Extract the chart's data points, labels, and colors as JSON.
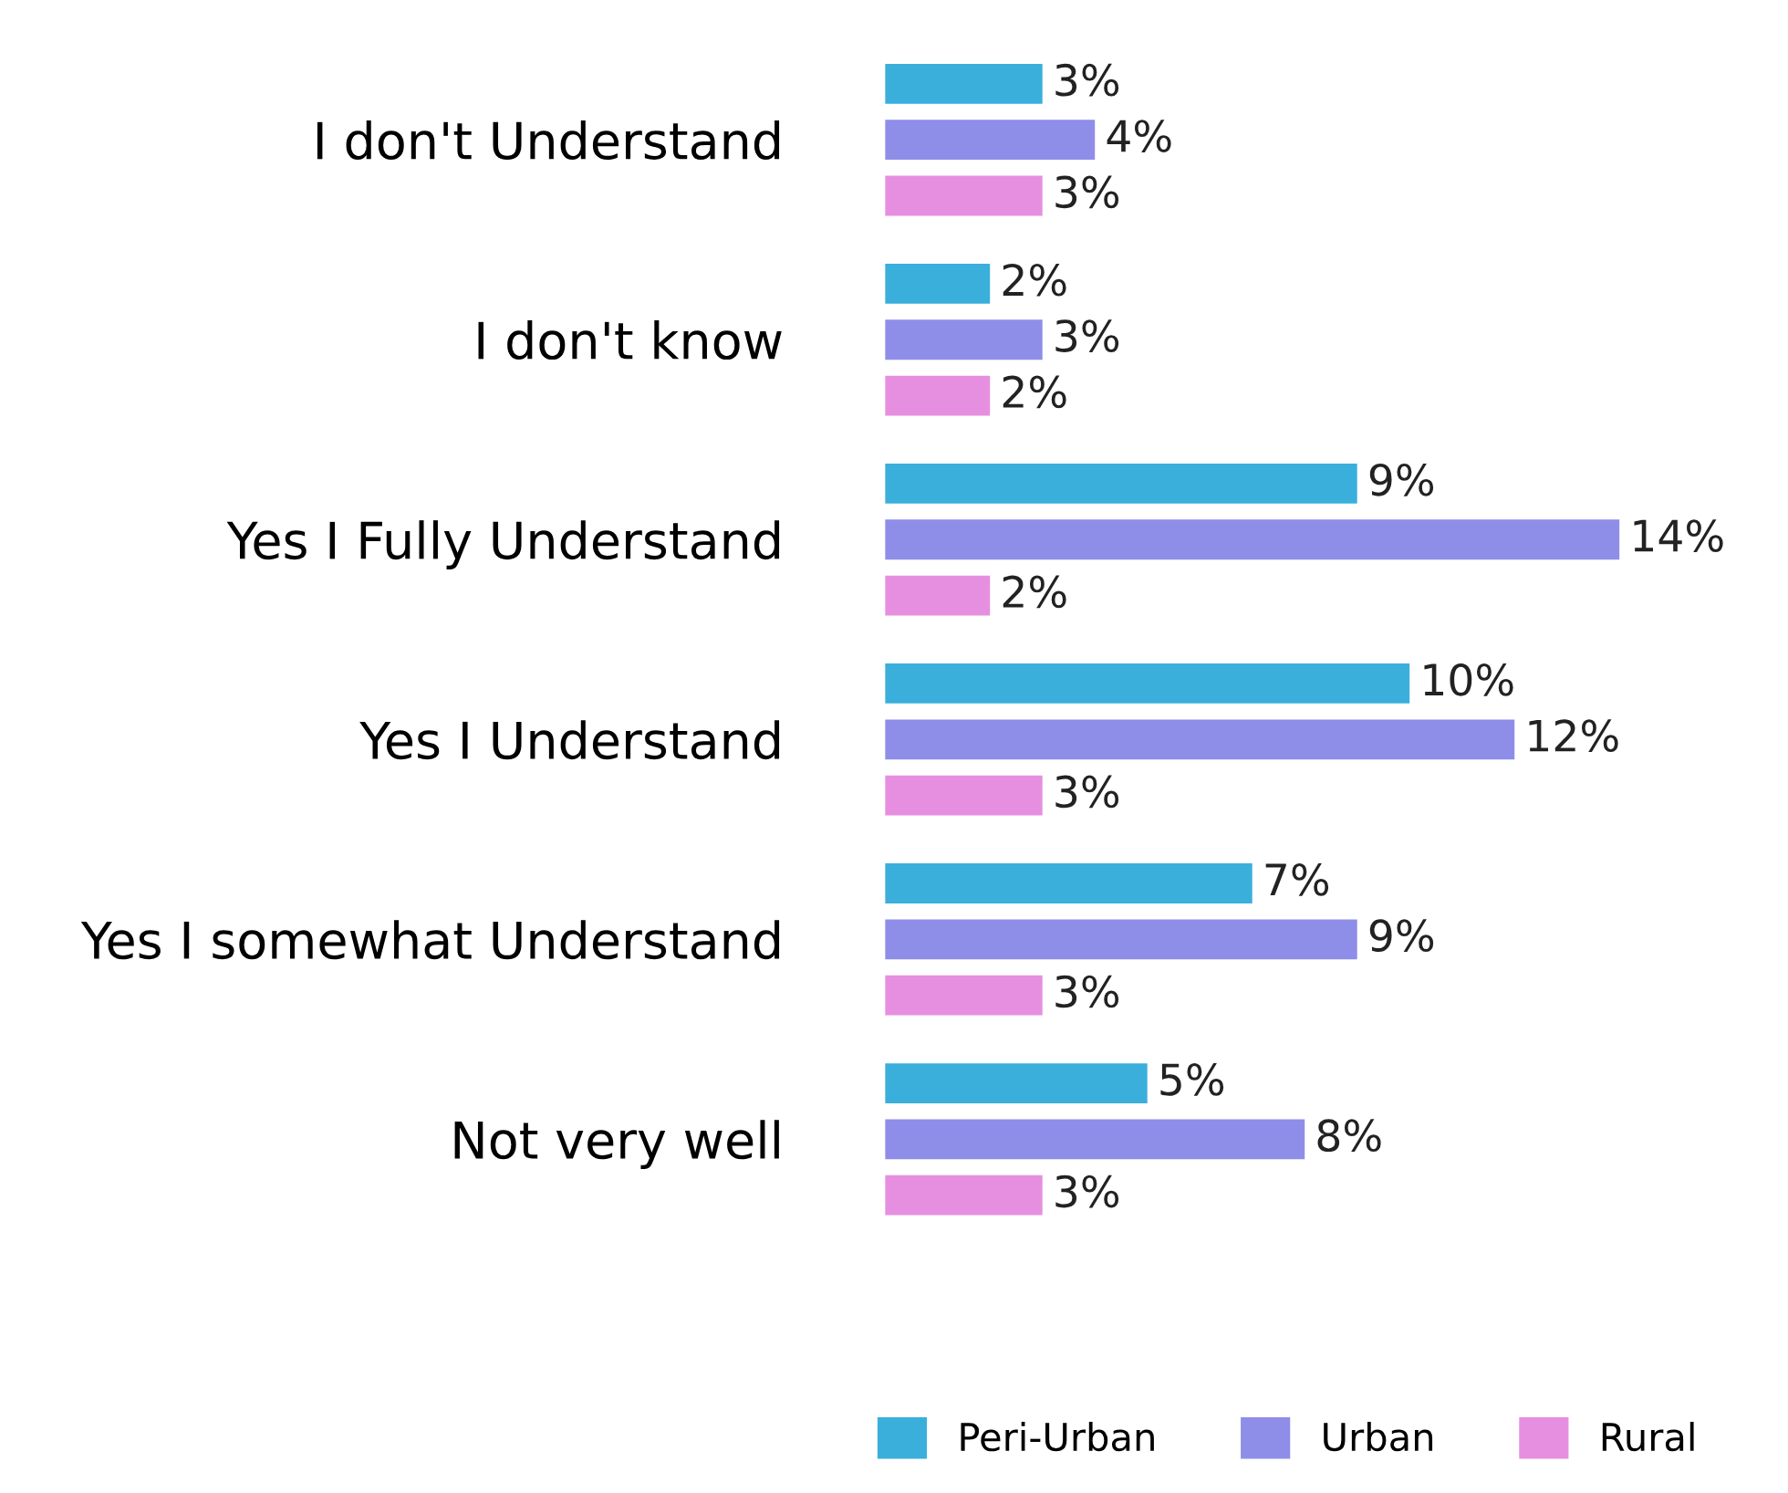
{
  "chart_data": {
    "type": "bar",
    "orientation": "horizontal",
    "categories": [
      "I don't Understand",
      "I don't know",
      "Yes I Fully Understand",
      "Yes I Understand",
      "Yes I somewhat Understand",
      "Not very well"
    ],
    "series": [
      {
        "name": "Peri-Urban",
        "color": "#3aafdc",
        "values": [
          3,
          2,
          9,
          10,
          7,
          5
        ],
        "value_labels": [
          "3%",
          "2%",
          "9%",
          "10%",
          "7%",
          "5%"
        ]
      },
      {
        "name": "Urban",
        "color": "#8e8ee8",
        "values": [
          4,
          3,
          14,
          12,
          9,
          8
        ],
        "value_labels": [
          "4%",
          "3%",
          "14%",
          "12%",
          "9%",
          "8%"
        ]
      },
      {
        "name": "Rural",
        "color": "#e68fe0",
        "values": [
          3,
          2,
          2,
          3,
          3,
          3
        ],
        "value_labels": [
          "3%",
          "2%",
          "2%",
          "3%",
          "3%",
          "3%"
        ]
      }
    ],
    "legend": "bottom",
    "grid": false
  }
}
